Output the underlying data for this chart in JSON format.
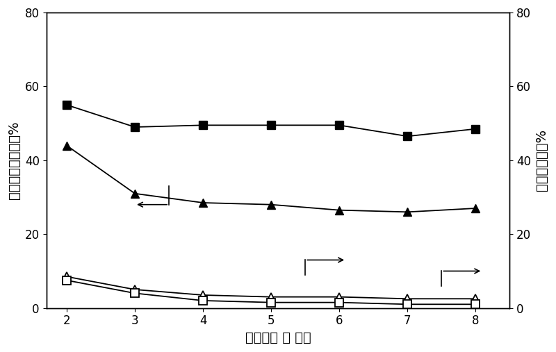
{
  "x": [
    2,
    3,
    4,
    5,
    6,
    7,
    8
  ],
  "filled_square_y": [
    55,
    49,
    49.5,
    49.5,
    49.5,
    46.5,
    48.5
  ],
  "filled_triangle_y": [
    44,
    31,
    28.5,
    28,
    26.5,
    26,
    27
  ],
  "open_triangle_y": [
    8.5,
    5,
    3.5,
    3,
    3,
    2.5,
    2.5
  ],
  "open_square_y": [
    7.5,
    4,
    2,
    1.5,
    1.5,
    1,
    1
  ],
  "xlabel": "反应时间 ／ 小时",
  "ylabel_left": "加氢脱硫转化率／%",
  "ylabel_right": "裂化转化率／%",
  "ylim": [
    0,
    80
  ],
  "xlim": [
    1.7,
    8.5
  ],
  "xticks": [
    2,
    3,
    4,
    5,
    6,
    7,
    8
  ],
  "yticks": [
    0,
    20,
    40,
    60,
    80
  ],
  "bg_color": "#ffffff",
  "line_color": "#000000",
  "marker_size": 9,
  "line_width": 1.3,
  "font_size_label": 13,
  "font_size_tick": 12,
  "font_size_axis_label": 14
}
